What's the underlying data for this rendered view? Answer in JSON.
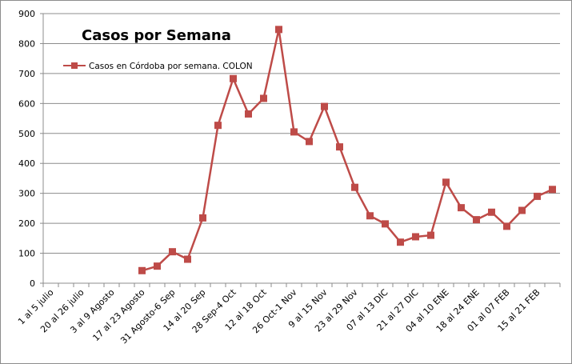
{
  "chart_data": {
    "type": "line",
    "title": "Casos por Semana",
    "xlabel": "",
    "ylabel": "",
    "ylim": [
      0,
      900
    ],
    "yticks": [
      0,
      100,
      200,
      300,
      400,
      500,
      600,
      700,
      800,
      900
    ],
    "grid": "horizontal",
    "legend_position": "top-left",
    "line_color": "#be4b48",
    "grid_color": "#8c8c8c",
    "x_tick_labels": [
      "1 al 5 julio",
      "20 al 26 julio",
      "3 al 9 Agosto",
      "17 al 23 Agosto",
      "31 Agosto-6 Sep",
      "14 al 20 Sep",
      "28 Sep-4 Oct",
      "12 al 18 Oct",
      "26 Oct-1 Nov",
      "9 al 15 Nov",
      "23 al 29 Nov",
      "07 al 13 DIC",
      "21 al 27 DIC",
      "04 al 10 ENE",
      "18 al 24 ENE",
      "01 al 07 FEB",
      "15 al 21 FEB"
    ],
    "series": [
      {
        "name": "Casos en Córdoba por semana. COLON",
        "points": [
          {
            "x": 6,
            "y": 42
          },
          {
            "x": 7,
            "y": 57
          },
          {
            "x": 8,
            "y": 105
          },
          {
            "x": 9,
            "y": 80
          },
          {
            "x": 10,
            "y": 218
          },
          {
            "x": 11,
            "y": 527
          },
          {
            "x": 12,
            "y": 683
          },
          {
            "x": 13,
            "y": 565
          },
          {
            "x": 14,
            "y": 617
          },
          {
            "x": 15,
            "y": 847
          },
          {
            "x": 16,
            "y": 505
          },
          {
            "x": 17,
            "y": 473
          },
          {
            "x": 18,
            "y": 590
          },
          {
            "x": 19,
            "y": 455
          },
          {
            "x": 20,
            "y": 320
          },
          {
            "x": 21,
            "y": 225
          },
          {
            "x": 22,
            "y": 198
          },
          {
            "x": 23,
            "y": 137
          },
          {
            "x": 24,
            "y": 155
          },
          {
            "x": 25,
            "y": 160
          },
          {
            "x": 26,
            "y": 337
          },
          {
            "x": 27,
            "y": 252
          },
          {
            "x": 28,
            "y": 212
          },
          {
            "x": 29,
            "y": 237
          },
          {
            "x": 30,
            "y": 190
          },
          {
            "x": 31,
            "y": 243
          },
          {
            "x": 32,
            "y": 290
          },
          {
            "x": 33,
            "y": 313
          }
        ]
      }
    ]
  }
}
